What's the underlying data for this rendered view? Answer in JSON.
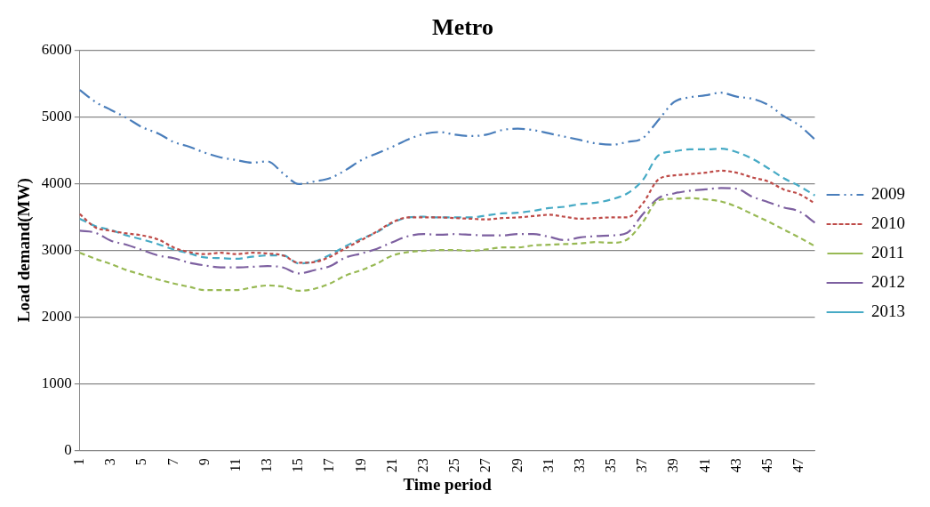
{
  "chart_data": {
    "type": "line",
    "title": "Metro",
    "xlabel": "Time period",
    "ylabel": "Load demand(MW)",
    "categories": [
      "1",
      null,
      "3",
      null,
      "5",
      null,
      "7",
      null,
      "9",
      null,
      "11",
      null,
      "13",
      null,
      "15",
      null,
      "17",
      null,
      "19",
      null,
      "21",
      null,
      "23",
      null,
      "25",
      null,
      "27",
      null,
      "29",
      null,
      "31",
      null,
      "33",
      null,
      "35",
      null,
      "37",
      null,
      "39",
      null,
      "41",
      null,
      "43",
      null,
      "45",
      null,
      "47",
      null
    ],
    "ylim": [
      0,
      6000
    ],
    "yticks": [
      0,
      1000,
      2000,
      3000,
      4000,
      5000,
      6000
    ],
    "grid": "y",
    "legend": "right",
    "marker": "none",
    "line_style": "dashed",
    "series": [
      {
        "name": "2009",
        "color": "#4a7ebb",
        "values": [
          5400,
          5220,
          5100,
          4980,
          4840,
          4750,
          4620,
          4550,
          4460,
          4390,
          4350,
          4310,
          4330,
          4150,
          3990,
          4030,
          4080,
          4200,
          4350,
          4450,
          4550,
          4660,
          4740,
          4770,
          4730,
          4710,
          4730,
          4800,
          4820,
          4800,
          4750,
          4700,
          4650,
          4600,
          4580,
          4620,
          4680,
          4950,
          5220,
          5290,
          5320,
          5360,
          5300,
          5270,
          5180,
          5010,
          4870,
          4660
        ]
      },
      {
        "name": "2010",
        "color": "#be4b48",
        "values": [
          3540,
          3340,
          3290,
          3250,
          3220,
          3160,
          3040,
          2970,
          2940,
          2960,
          2940,
          2960,
          2950,
          2920,
          2810,
          2820,
          2900,
          3030,
          3150,
          3280,
          3420,
          3490,
          3490,
          3490,
          3480,
          3470,
          3460,
          3480,
          3490,
          3510,
          3530,
          3500,
          3470,
          3480,
          3490,
          3490,
          3700,
          4060,
          4120,
          4140,
          4160,
          4190,
          4160,
          4090,
          4030,
          3910,
          3840,
          3700
        ]
      },
      {
        "name": "2011",
        "color": "#98b954",
        "values": [
          2960,
          2870,
          2790,
          2700,
          2630,
          2560,
          2500,
          2450,
          2400,
          2400,
          2400,
          2440,
          2470,
          2450,
          2390,
          2420,
          2500,
          2620,
          2700,
          2800,
          2920,
          2970,
          2990,
          3000,
          3000,
          2990,
          3010,
          3040,
          3040,
          3070,
          3080,
          3090,
          3100,
          3120,
          3110,
          3160,
          3420,
          3750,
          3770,
          3780,
          3760,
          3730,
          3650,
          3540,
          3430,
          3310,
          3190,
          3060
        ]
      },
      {
        "name": "2012",
        "color": "#7d60a0",
        "values": [
          3290,
          3260,
          3140,
          3080,
          3000,
          2920,
          2880,
          2810,
          2770,
          2740,
          2740,
          2750,
          2760,
          2740,
          2650,
          2700,
          2760,
          2890,
          2950,
          3020,
          3120,
          3210,
          3240,
          3230,
          3240,
          3230,
          3220,
          3220,
          3240,
          3240,
          3200,
          3150,
          3190,
          3210,
          3220,
          3260,
          3540,
          3780,
          3850,
          3890,
          3910,
          3930,
          3920,
          3800,
          3720,
          3640,
          3580,
          3410
        ]
      },
      {
        "name": "2013",
        "color": "#46aac5",
        "values": [
          3470,
          3360,
          3300,
          3220,
          3160,
          3090,
          3010,
          2950,
          2890,
          2880,
          2870,
          2900,
          2920,
          2920,
          2800,
          2830,
          2930,
          3060,
          3170,
          3270,
          3410,
          3490,
          3500,
          3490,
          3490,
          3490,
          3520,
          3550,
          3560,
          3590,
          3630,
          3650,
          3690,
          3710,
          3760,
          3850,
          4050,
          4420,
          4480,
          4510,
          4510,
          4520,
          4470,
          4370,
          4230,
          4080,
          3960,
          3820
        ]
      }
    ]
  }
}
